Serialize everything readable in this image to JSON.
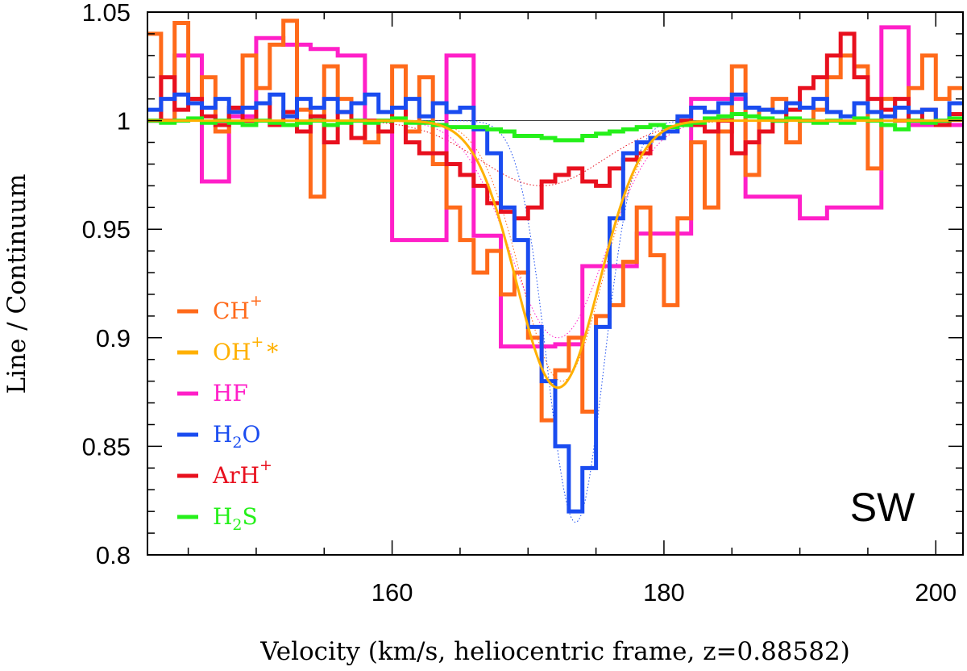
{
  "chart_data": {
    "type": "line",
    "step": true,
    "xlabel": "Velocity (km/s, heliocentric frame, z=0.88582)",
    "ylabel": "Line / Continuum",
    "xlim": [
      142,
      202
    ],
    "ylim": [
      0.8,
      1.05
    ],
    "x_ticks": [
      160,
      180,
      200
    ],
    "x_tick_labels": [
      "160",
      "180",
      "200"
    ],
    "y_ticks": [
      0.8,
      0.85,
      0.9,
      0.95,
      1.0,
      1.05
    ],
    "y_tick_labels": [
      "0.8",
      "0.85",
      "0.9",
      "0.95",
      "1",
      "1.05"
    ],
    "panel_label": "SW",
    "legend": [
      {
        "base": "CH",
        "sub": "",
        "sup": "+",
        "tail": "",
        "color": "#FF6A1A"
      },
      {
        "base": "OH",
        "sub": "",
        "sup": "+",
        "tail": "*",
        "color": "#FFB000"
      },
      {
        "base": "HF",
        "sub": "",
        "sup": "",
        "tail": "",
        "color": "#FF1FC8"
      },
      {
        "base": "H",
        "sub": "2",
        "sup": "",
        "tail": "O",
        "color": "#1A4CF0"
      },
      {
        "base": "ArH",
        "sub": "",
        "sup": "+",
        "tail": "",
        "color": "#E8101E"
      },
      {
        "base": "H",
        "sub": "2",
        "sup": "",
        "tail": "S",
        "color": "#25F01A"
      }
    ],
    "series": [
      {
        "name": "CH+",
        "color": "#FF6A1A",
        "kind": "step",
        "x": [
          142,
          143,
          144,
          145,
          146,
          147,
          148,
          149,
          150,
          151,
          152,
          153,
          154,
          155,
          156,
          157,
          158,
          159,
          160,
          161,
          162,
          163,
          164,
          165,
          166,
          167,
          168,
          169,
          170,
          171,
          172,
          173,
          174,
          175,
          176,
          177,
          178,
          179,
          180,
          181,
          182,
          183,
          184,
          185,
          186,
          187,
          188,
          189,
          190,
          191,
          192,
          193,
          194,
          195,
          196,
          197,
          198,
          199,
          200,
          201
        ],
        "values": [
          1.04,
          1.0,
          1.045,
          1.01,
          1.02,
          0.995,
          1.005,
          1.03,
          1.015,
          1.035,
          1.046,
          1.005,
          0.965,
          1.025,
          1.01,
          1.0,
          0.99,
          1.0,
          1.025,
          0.995,
          1.02,
          0.98,
          0.96,
          0.945,
          0.93,
          0.94,
          0.92,
          0.93,
          0.9,
          0.862,
          0.885,
          0.9,
          0.866,
          0.91,
          0.915,
          0.935,
          0.96,
          0.938,
          0.915,
          0.955,
          0.99,
          0.96,
          0.995,
          1.025,
          0.975,
          1.005,
          1.01,
          0.99,
          1.0,
          1.005,
          1.02,
          1.03,
          1.025,
          0.978,
          1.01,
          1.0,
          1.015,
          1.03,
          1.01,
          1.015
        ]
      },
      {
        "name": "OH+*",
        "color": "#FFB000",
        "kind": "gaussian",
        "center": 172.2,
        "depth": 0.123,
        "sigma": 3.05
      },
      {
        "name": "HF",
        "color": "#FF1FC8",
        "kind": "step",
        "x": [
          142,
          144,
          146,
          148,
          150,
          152,
          154,
          156,
          158,
          160,
          162,
          164,
          166,
          168,
          170,
          172,
          174,
          176,
          178,
          180,
          182,
          184,
          186,
          188,
          190,
          192,
          194,
          196,
          198,
          200
        ],
        "values": [
          1.0,
          1.03,
          0.972,
          1.002,
          1.038,
          1.035,
          1.033,
          1.03,
          1.0,
          0.945,
          0.945,
          1.03,
          0.947,
          0.896,
          0.896,
          0.897,
          0.933,
          0.933,
          0.948,
          0.948,
          1.01,
          1.01,
          0.965,
          0.965,
          0.955,
          0.96,
          0.96,
          1.043,
          0.998,
          0.998
        ]
      },
      {
        "name": "H2O",
        "color": "#1A4CF0",
        "kind": "step",
        "x": [
          142,
          143,
          144,
          145,
          146,
          147,
          148,
          149,
          150,
          151,
          152,
          153,
          154,
          155,
          156,
          157,
          158,
          159,
          160,
          161,
          162,
          163,
          164,
          165,
          166,
          167,
          168,
          169,
          170,
          171,
          172,
          173,
          174,
          175,
          176,
          177,
          178,
          179,
          180,
          181,
          182,
          183,
          184,
          185,
          186,
          187,
          188,
          189,
          190,
          191,
          192,
          193,
          194,
          195,
          196,
          197,
          198,
          199,
          200,
          201
        ],
        "values": [
          1.005,
          1.01,
          1.012,
          1.008,
          1.006,
          1.01,
          1.004,
          1.006,
          1.008,
          1.012,
          1.002,
          1.01,
          1.006,
          1.01,
          1.004,
          1.008,
          1.012,
          1.004,
          1.006,
          1.01,
          1.002,
          1.008,
          1.004,
          1.006,
          0.996,
          0.985,
          0.96,
          0.945,
          0.905,
          0.88,
          0.85,
          0.82,
          0.84,
          0.905,
          0.955,
          0.985,
          0.99,
          0.992,
          0.995,
          1.002,
          1.006,
          1.004,
          1.008,
          1.012,
          1.006,
          1.005,
          1.004,
          1.008,
          1.006,
          1.01,
          1.004,
          1.002,
          1.008,
          1.004,
          1.002,
          1.006,
          1.004,
          1.005,
          1.0,
          1.008
        ]
      },
      {
        "name": "ArH+",
        "color": "#E8101E",
        "kind": "step",
        "x": [
          142,
          143,
          144,
          145,
          146,
          147,
          148,
          149,
          150,
          151,
          152,
          153,
          154,
          155,
          156,
          157,
          158,
          159,
          160,
          161,
          162,
          163,
          164,
          165,
          166,
          167,
          168,
          169,
          170,
          171,
          172,
          173,
          174,
          175,
          176,
          177,
          178,
          179,
          180,
          181,
          182,
          183,
          184,
          185,
          186,
          187,
          188,
          189,
          190,
          191,
          192,
          193,
          194,
          195,
          196,
          197,
          198,
          199,
          200,
          201
        ],
        "values": [
          1.0,
          1.02,
          1.005,
          1.01,
          1.002,
          0.998,
          1.006,
          1.0,
          1.008,
          0.998,
          1.004,
          0.995,
          1.002,
          0.99,
          1.004,
          0.992,
          1.0,
          0.995,
          1.006,
          0.99,
          0.985,
          0.985,
          0.98,
          0.975,
          0.97,
          0.962,
          0.958,
          0.955,
          0.96,
          0.972,
          0.975,
          0.978,
          0.972,
          0.97,
          0.978,
          0.982,
          0.985,
          0.992,
          0.995,
          1.0,
          0.998,
          0.995,
          1.0,
          0.985,
          0.99,
          0.995,
          1.0,
          1.005,
          1.015,
          1.02,
          1.03,
          1.04,
          1.02,
          1.01,
          1.005,
          1.01,
          1.0,
          1.005,
          0.998,
          1.003
        ]
      },
      {
        "name": "H2S",
        "color": "#25F01A",
        "kind": "step",
        "x": [
          142,
          143,
          144,
          145,
          146,
          147,
          148,
          149,
          150,
          151,
          152,
          153,
          154,
          155,
          156,
          157,
          158,
          159,
          160,
          161,
          162,
          163,
          164,
          165,
          166,
          167,
          168,
          169,
          170,
          171,
          172,
          173,
          174,
          175,
          176,
          177,
          178,
          179,
          180,
          181,
          182,
          183,
          184,
          185,
          186,
          187,
          188,
          189,
          190,
          191,
          192,
          193,
          194,
          195,
          196,
          197,
          198,
          199,
          200,
          201
        ],
        "values": [
          1.0,
          0.999,
          1.0,
          1.001,
          0.999,
          1.0,
          0.999,
          0.998,
          1.0,
          0.999,
          0.998,
          0.999,
          1.0,
          0.998,
          0.999,
          1.0,
          0.999,
          1.0,
          1.001,
          0.999,
          0.999,
          0.998,
          0.997,
          0.997,
          0.997,
          0.996,
          0.995,
          0.993,
          0.993,
          0.992,
          0.991,
          0.991,
          0.993,
          0.994,
          0.995,
          0.996,
          0.997,
          0.998,
          0.997,
          0.998,
          0.999,
          1.001,
          1.002,
          1.003,
          1.002,
          1.001,
          1.0,
          1.001,
          1.0,
          0.999,
          1.0,
          0.999,
          1.001,
          1.0,
          0.998,
          0.996,
          1.0,
          0.999,
          1.0,
          1.001
        ]
      }
    ],
    "model_fits": [
      {
        "name": "H2O fit",
        "color": "#1A4CF0",
        "center": 173.5,
        "depth": 0.185,
        "sigma": 2.1
      },
      {
        "name": "CH+ fit",
        "color": "#FF6A1A",
        "center": 172.5,
        "depth": 0.12,
        "sigma": 3.0
      },
      {
        "name": "HF fit",
        "color": "#FF1FC8",
        "center": 172.2,
        "depth": 0.1,
        "sigma": 3.5
      },
      {
        "name": "ArH+ fit",
        "color": "#E8101E",
        "center": 171.0,
        "depth": 0.03,
        "sigma": 4.5
      }
    ]
  }
}
